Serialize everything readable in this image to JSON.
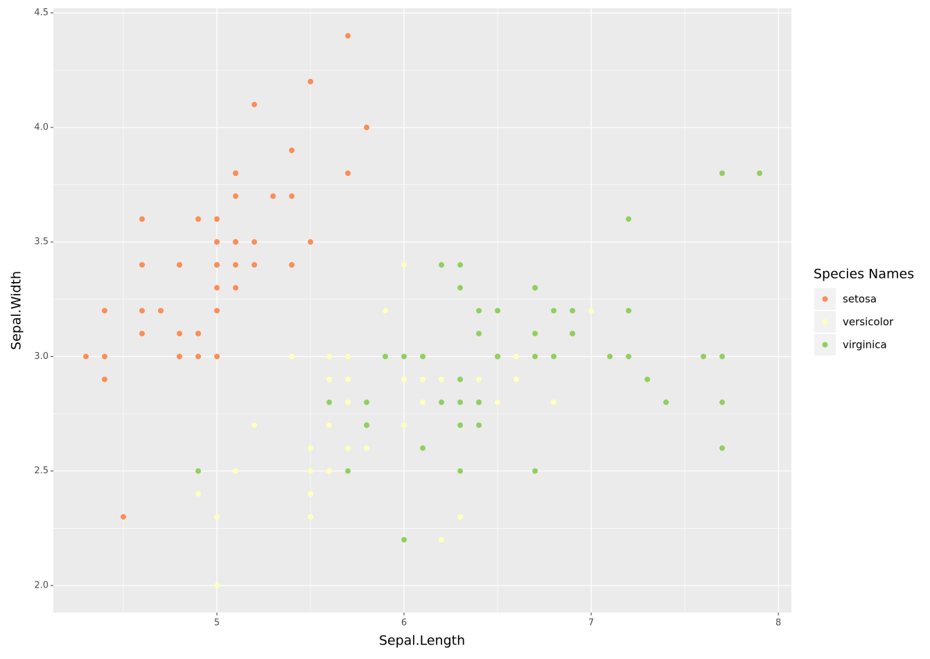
{
  "chart_data": {
    "type": "scatter",
    "x_label": "Sepal.Length",
    "y_label": "Sepal.Width",
    "legend_title": "Species Names",
    "legend_position": "right",
    "grid": true,
    "xlim": [
      4.126,
      8.07
    ],
    "ylim": [
      1.882,
      4.52
    ],
    "xticks": [
      5,
      6,
      7,
      8
    ],
    "yticks": [
      {
        "value": 2,
        "label": "2.0"
      },
      {
        "value": 2.5,
        "label": "2.5"
      },
      {
        "value": 3,
        "label": "3.0"
      },
      {
        "value": 3.5,
        "label": "3.5"
      },
      {
        "value": 4,
        "label": "4.0"
      },
      {
        "value": 4.5,
        "label": "4.5"
      }
    ],
    "x_minor_grid": [
      4.5,
      5.5,
      6.5,
      7.5
    ],
    "y_minor_grid": [
      2.25,
      2.75,
      3.25,
      3.75,
      4.25
    ],
    "series": [
      {
        "name": "setosa",
        "color": "#fc8d59",
        "x": [
          5.1,
          4.9,
          4.7,
          4.6,
          5.0,
          5.4,
          4.6,
          5.0,
          4.4,
          4.9,
          5.4,
          4.8,
          4.8,
          4.3,
          5.8,
          5.7,
          5.4,
          5.1,
          5.7,
          5.1,
          5.4,
          5.1,
          4.6,
          5.1,
          4.8,
          5.0,
          5.0,
          5.2,
          5.2,
          4.7,
          4.8,
          5.4,
          5.2,
          5.5,
          4.9,
          5.0,
          5.5,
          4.9,
          4.4,
          5.1,
          5.0,
          4.5,
          4.4,
          5.0,
          5.1,
          4.8,
          5.1,
          4.6,
          5.3,
          5.0
        ],
        "values": [
          3.5,
          3.0,
          3.2,
          3.1,
          3.6,
          3.9,
          3.4,
          3.4,
          2.9,
          3.1,
          3.7,
          3.4,
          3.0,
          3.0,
          4.0,
          4.4,
          3.9,
          3.5,
          3.8,
          3.8,
          3.4,
          3.7,
          3.6,
          3.3,
          3.4,
          3.0,
          3.4,
          3.5,
          3.4,
          3.2,
          3.1,
          3.4,
          4.1,
          4.2,
          3.1,
          3.2,
          3.5,
          3.6,
          3.0,
          3.4,
          3.5,
          2.3,
          3.2,
          3.5,
          3.8,
          3.0,
          3.8,
          3.2,
          3.7,
          3.3
        ]
      },
      {
        "name": "versicolor",
        "color": "#ffffbf",
        "x": [
          7.0,
          6.4,
          6.9,
          5.5,
          6.5,
          5.7,
          6.3,
          4.9,
          6.6,
          5.2,
          5.0,
          5.9,
          6.0,
          6.1,
          5.6,
          6.7,
          5.6,
          5.8,
          6.2,
          5.6,
          5.9,
          6.1,
          6.3,
          6.1,
          6.4,
          6.6,
          6.8,
          6.7,
          6.0,
          5.7,
          5.5,
          5.5,
          5.8,
          6.0,
          5.4,
          6.0,
          6.7,
          6.3,
          5.6,
          5.5,
          5.5,
          6.1,
          5.8,
          5.0,
          5.6,
          5.7,
          5.7,
          6.2,
          5.1,
          5.7
        ],
        "values": [
          3.2,
          3.2,
          3.1,
          2.3,
          2.8,
          2.8,
          3.3,
          2.4,
          2.9,
          2.7,
          2.0,
          3.0,
          2.2,
          2.9,
          2.9,
          3.1,
          3.0,
          2.7,
          2.2,
          2.5,
          3.2,
          2.8,
          2.5,
          2.8,
          2.9,
          3.0,
          2.8,
          3.0,
          2.9,
          2.6,
          2.4,
          2.4,
          2.7,
          2.7,
          3.0,
          3.4,
          3.1,
          2.3,
          3.0,
          2.5,
          2.6,
          3.0,
          2.6,
          2.3,
          2.7,
          3.0,
          2.9,
          2.9,
          2.5,
          2.8
        ]
      },
      {
        "name": "virginica",
        "color": "#91cf60",
        "x": [
          6.3,
          5.8,
          7.1,
          6.3,
          6.5,
          7.6,
          4.9,
          7.3,
          6.7,
          7.2,
          6.5,
          6.4,
          6.8,
          5.7,
          5.8,
          6.4,
          6.5,
          7.7,
          7.7,
          6.0,
          6.9,
          5.6,
          7.7,
          6.3,
          6.7,
          7.2,
          6.2,
          6.1,
          6.4,
          7.2,
          7.4,
          7.9,
          6.4,
          6.3,
          6.1,
          7.7,
          6.3,
          6.4,
          6.0,
          6.9,
          6.7,
          6.9,
          5.8,
          6.8,
          6.7,
          6.7,
          6.3,
          6.5,
          6.2,
          5.9
        ],
        "values": [
          3.3,
          2.7,
          3.0,
          2.9,
          3.0,
          3.0,
          2.5,
          2.9,
          2.5,
          3.6,
          3.2,
          2.7,
          3.0,
          2.5,
          2.8,
          3.2,
          3.0,
          3.8,
          2.6,
          2.2,
          3.2,
          2.8,
          2.8,
          2.7,
          3.3,
          3.2,
          2.8,
          3.0,
          2.8,
          3.0,
          2.8,
          3.8,
          2.8,
          2.8,
          2.6,
          3.0,
          3.4,
          3.1,
          3.0,
          3.1,
          3.1,
          3.1,
          2.7,
          3.2,
          3.3,
          3.0,
          2.5,
          3.0,
          3.4,
          3.0
        ]
      }
    ]
  }
}
